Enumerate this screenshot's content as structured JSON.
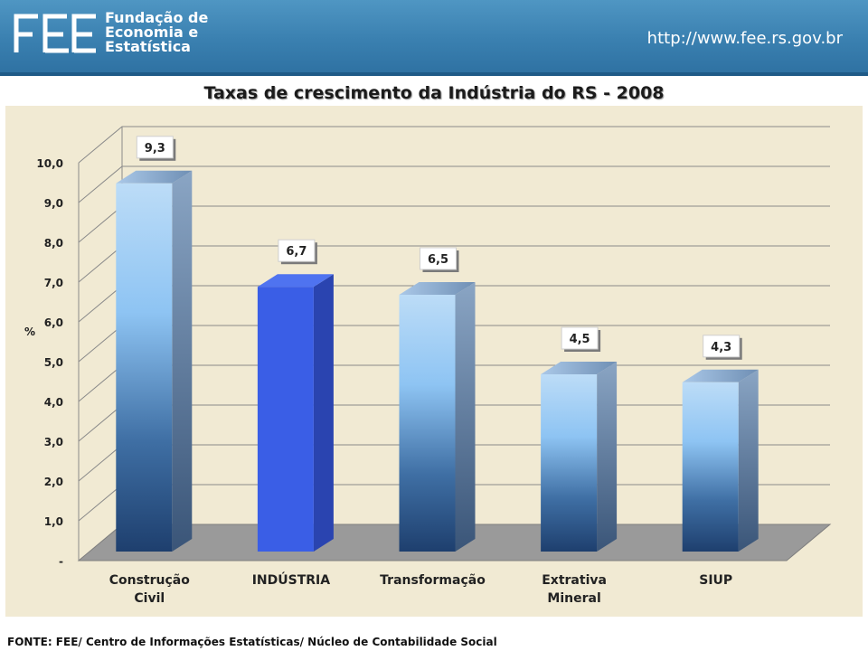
{
  "header": {
    "logo_lines": [
      "Fundação de",
      "Economia e",
      "Estatística"
    ],
    "url": "http://www.fee.rs.gov.br"
  },
  "footer": {
    "source": "FONTE: FEE/ Centro de Informações Estatísticas/ Núcleo de Contabilidade Social"
  },
  "chart_data": {
    "type": "bar",
    "title": "Taxas de crescimento da Indústria do RS - 2008",
    "ylabel": "%",
    "xlabel": "",
    "ylim": [
      0,
      10
    ],
    "yticks": [
      "-",
      "1,0",
      "2,0",
      "3,0",
      "4,0",
      "5,0",
      "6,0",
      "7,0",
      "8,0",
      "9,0",
      "10,0"
    ],
    "categories": [
      [
        "Construção",
        "Civil"
      ],
      [
        "INDÚSTRIA"
      ],
      [
        "Transformação"
      ],
      [
        "Extrativa",
        "Mineral"
      ],
      [
        "SIUP"
      ]
    ],
    "values": [
      9.3,
      6.7,
      6.5,
      4.5,
      4.3
    ],
    "data_labels": [
      "9,3",
      "6,7",
      "6,5",
      "4,5",
      "4,3"
    ],
    "highlight_index": 1,
    "grid": true,
    "colors": {
      "bar": "#8fc3f2",
      "highlight": "#3a5ee6",
      "floor": "#9a9a9a",
      "background": "#f1ead3"
    }
  }
}
